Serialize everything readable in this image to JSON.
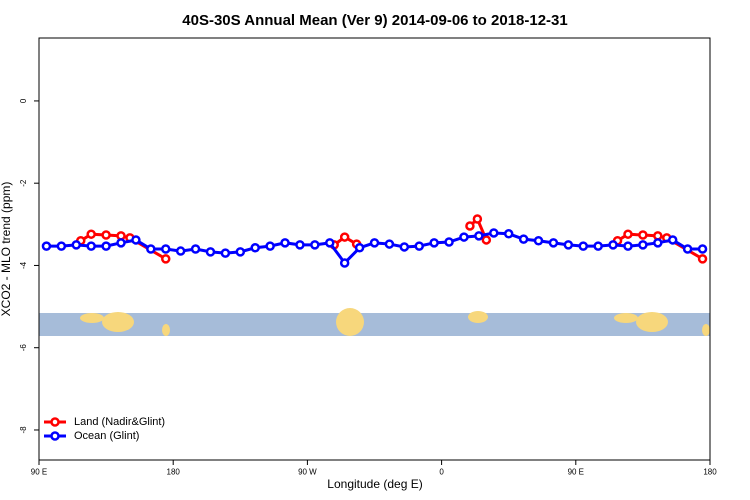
{
  "chart_data": {
    "type": "line",
    "title": "40S-30S Annual Mean (Ver 9)   2014-09-06 to 2018-12-31",
    "x_label": "Longitude (deg E)",
    "y_label": "XCO2 - MLO trend (ppm)",
    "xlim": [
      90,
      540
    ],
    "xticks": [
      {
        "value": 90,
        "label": "90 E"
      },
      {
        "value": 180,
        "label": "180"
      },
      {
        "value": 270,
        "label": "90 W"
      },
      {
        "value": 360,
        "label": "0"
      },
      {
        "value": 450,
        "label": "90 E"
      },
      {
        "value": 540,
        "label": "180"
      }
    ],
    "ylim": [
      -8.73,
      1.53
    ],
    "yticks": [
      0,
      -2,
      -4,
      -6,
      -8
    ],
    "legend": "bottomleft",
    "series": [
      {
        "name": "Land (Nadir&Glint)",
        "color": "#ff0000",
        "x": [
          118,
          125,
          135,
          145,
          151,
          175,
          null,
          288,
          295,
          303,
          null,
          379,
          384,
          390,
          null,
          478,
          485,
          495,
          505,
          511,
          535
        ],
        "values": [
          -3.4,
          -3.24,
          -3.26,
          -3.28,
          -3.33,
          -3.84,
          null,
          -3.5,
          -3.31,
          -3.48,
          null,
          -3.04,
          -2.87,
          -3.38,
          null,
          -3.4,
          -3.24,
          -3.26,
          -3.28,
          -3.33,
          -3.84
        ]
      },
      {
        "name": "Ocean (Glint)",
        "color": "#0000ff",
        "x": [
          95,
          105,
          115,
          125,
          135,
          145,
          155,
          165,
          175,
          185,
          195,
          205,
          215,
          225,
          235,
          245,
          255,
          265,
          275,
          285,
          295,
          305,
          315,
          325,
          335,
          345,
          355,
          365,
          375,
          385,
          395,
          405,
          415,
          425,
          435,
          445,
          455,
          465,
          475,
          485,
          495,
          505,
          515,
          525,
          535
        ],
        "values": [
          -3.53,
          -3.53,
          -3.5,
          -3.53,
          -3.53,
          -3.45,
          -3.38,
          -3.6,
          -3.6,
          -3.65,
          -3.6,
          -3.67,
          -3.7,
          -3.67,
          -3.57,
          -3.53,
          -3.45,
          -3.5,
          -3.5,
          -3.45,
          -3.94,
          -3.57,
          -3.45,
          -3.48,
          -3.55,
          -3.53,
          -3.45,
          -3.43,
          -3.31,
          -3.28,
          -3.21,
          -3.23,
          -3.36,
          -3.4,
          -3.45,
          -3.5,
          -3.53,
          -3.53,
          -3.5,
          -3.53,
          -3.5,
          -3.45,
          -3.38,
          -3.6,
          -3.6
        ]
      }
    ]
  }
}
